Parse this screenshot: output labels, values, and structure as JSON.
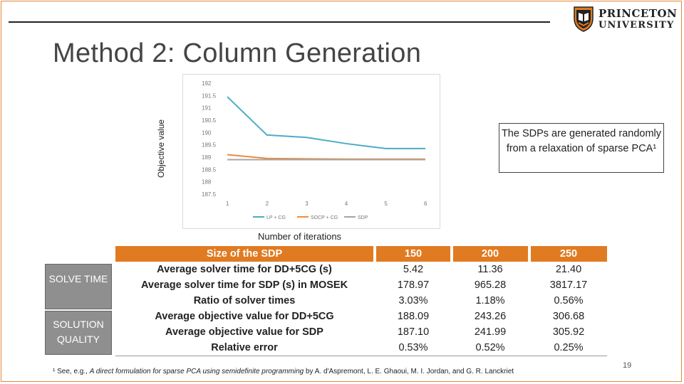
{
  "slide": {
    "title": "Method 2: Column Generation",
    "page_number": "19",
    "logo": {
      "line1": "PRINCETON",
      "line2": "UNIVERSITY"
    }
  },
  "note": {
    "text": "The SDPs are generated randomly from a relaxation of sparse PCA¹"
  },
  "chart_data": {
    "type": "line",
    "xlabel": "Number of iterations",
    "ylabel": "Objective value",
    "x": [
      1,
      2,
      3,
      4,
      5,
      6
    ],
    "ylim": [
      187.5,
      192
    ],
    "yticks": [
      "192",
      "191.5",
      "191",
      "190.5",
      "190",
      "189.5",
      "189",
      "188.5",
      "188",
      "187.5"
    ],
    "xticks": [
      "1",
      "2",
      "3",
      "4",
      "5",
      "6"
    ],
    "grid": false,
    "legend_position": "bottom",
    "series": [
      {
        "name": "LP + CG",
        "color": "#4bacc6",
        "values": [
          191.45,
          189.9,
          189.8,
          189.55,
          189.35,
          189.35
        ]
      },
      {
        "name": "SOCP + CG",
        "color": "#f08a3c",
        "values": [
          189.1,
          188.95,
          188.93,
          188.92,
          188.92,
          188.92
        ]
      },
      {
        "name": "SDP",
        "color": "#a5a5a5",
        "values": [
          188.9,
          188.9,
          188.9,
          188.9,
          188.9,
          188.9
        ]
      }
    ]
  },
  "table": {
    "rows": [
      "Size of the SDP",
      "Average solver time for DD+5CG (s)",
      "Average solver time for SDP (s) in MOSEK",
      "Ratio of solver times",
      "Average objective value for DD+5CG",
      "Average objective value for SDP",
      "Relative error"
    ],
    "col_150": [
      "150",
      "5.42",
      "178.97",
      "3.03%",
      "188.09",
      "187.10",
      "0.53%"
    ],
    "col_200": [
      "200",
      "11.36",
      "965.28",
      "1.18%",
      "243.26",
      "241.99",
      "0.52%"
    ],
    "col_250": [
      "250",
      "21.40",
      "3817.17",
      "0.56%",
      "306.68",
      "305.92",
      "0.25%"
    ],
    "side_labels": {
      "solve": "SOLVE TIME",
      "quality": "SOLUTION QUALITY"
    }
  },
  "footnote": {
    "prefix": "¹ See, e.g., ",
    "title": "A direct formulation for sparse PCA using semidefinite programming",
    "suffix": " by A. d'Aspremont, L. E. Ghaoui, M. I. Jordan, and G. R. Lanckriet"
  }
}
